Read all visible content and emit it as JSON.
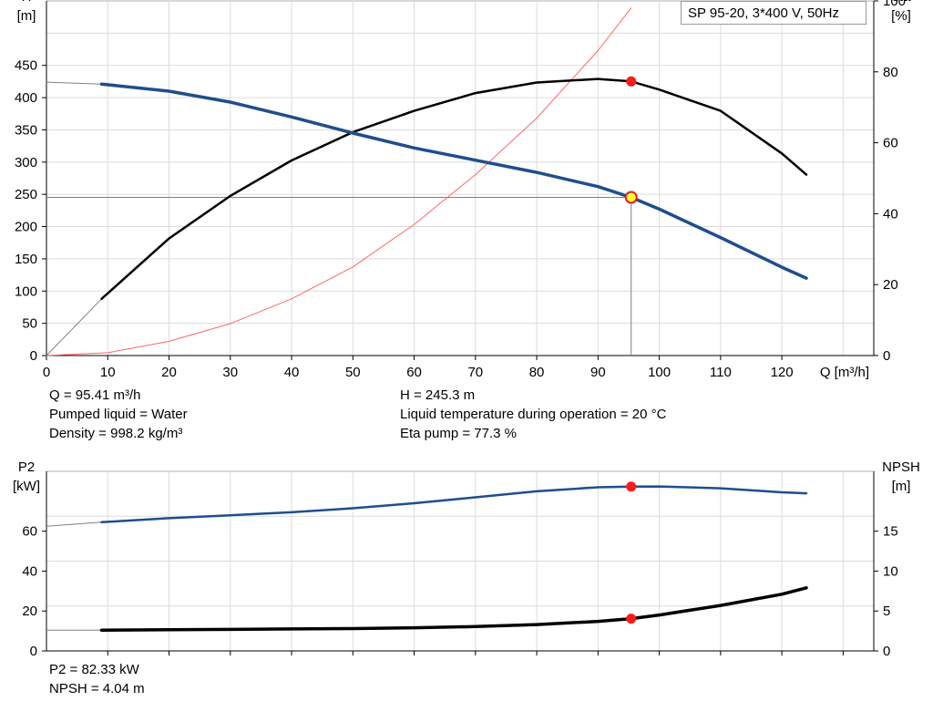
{
  "chart_data": [
    {
      "type": "line",
      "title": "SP 95-20, 3*400 V, 50Hz",
      "xlabel": "Q [m³/h]",
      "ylabel_left": [
        "H",
        "[m]"
      ],
      "ylabel_right": [
        "eta",
        "[%]"
      ],
      "xlim": [
        0,
        135
      ],
      "ylim_left": [
        0,
        550
      ],
      "ylim_right": [
        0,
        100
      ],
      "grid": true,
      "xticks": [
        "0",
        "10",
        "20",
        "30",
        "40",
        "50",
        "60",
        "70",
        "80",
        "90",
        "100",
        "110",
        "120"
      ],
      "yticks_left": [
        "0",
        "50",
        "100",
        "150",
        "200",
        "250",
        "300",
        "350",
        "400",
        "450"
      ],
      "yticks_right": [
        "0",
        "20",
        "40",
        "60",
        "80",
        "100"
      ],
      "series": [
        {
          "axis": "left",
          "color": "#1f4e8c",
          "x": [
            0,
            9,
            20,
            30,
            40,
            50,
            60,
            70,
            80,
            90,
            95.41,
            100,
            110,
            120,
            124
          ],
          "y": [
            424,
            421,
            410,
            393,
            370,
            345,
            322,
            303,
            284,
            262,
            245.3,
            227,
            183,
            137,
            120
          ]
        },
        {
          "axis": "right",
          "color": "#000000",
          "x": [
            0,
            9,
            20,
            30,
            40,
            50,
            60,
            70,
            80,
            90,
            95.41,
            100,
            110,
            120,
            124
          ],
          "y": [
            0,
            16,
            33,
            45,
            55,
            63,
            69,
            74,
            77,
            78,
            77.3,
            75,
            69,
            57,
            51
          ]
        },
        {
          "axis": "right",
          "color": "#ff6666",
          "x": [
            0,
            10,
            20,
            30,
            40,
            50,
            60,
            70,
            80,
            90,
            95.41
          ],
          "y": [
            0,
            0.8,
            4,
            9,
            16,
            25,
            37,
            51,
            67,
            86,
            98
          ]
        }
      ],
      "operating_point": {
        "Q": 95.41,
        "H": 245.3,
        "eta": 77.3
      }
    },
    {
      "type": "line",
      "xlabel": "",
      "ylabel_left": [
        "P2",
        "[kW]"
      ],
      "ylabel_right": [
        "NPSH",
        "[m]"
      ],
      "xlim": [
        0,
        135
      ],
      "ylim_left": [
        0,
        90
      ],
      "ylim_right": [
        0,
        22.5
      ],
      "grid": true,
      "yticks_left": [
        "0",
        "20",
        "40",
        "60"
      ],
      "yticks_right": [
        "0",
        "5",
        "10",
        "15"
      ],
      "series": [
        {
          "axis": "left",
          "color": "#1f4e8c",
          "x": [
            0,
            9,
            20,
            30,
            40,
            50,
            60,
            70,
            80,
            90,
            95.41,
            100,
            110,
            120,
            124
          ],
          "y": [
            62.5,
            64.5,
            66.5,
            68,
            69.5,
            71.5,
            74,
            77,
            80,
            82,
            82.33,
            82.4,
            81.5,
            79.5,
            79
          ]
        },
        {
          "axis": "right",
          "color": "#000000",
          "x": [
            0,
            9,
            20,
            30,
            40,
            50,
            60,
            70,
            80,
            90,
            95.41,
            100,
            110,
            120,
            124
          ],
          "y": [
            2.6,
            2.6,
            2.65,
            2.7,
            2.75,
            2.8,
            2.9,
            3.05,
            3.3,
            3.7,
            4.04,
            4.5,
            5.7,
            7.1,
            7.9
          ]
        }
      ],
      "operating_point": {
        "Q": 95.41,
        "P2": 82.33,
        "NPSH": 4.04
      }
    }
  ],
  "info": {
    "q": "Q = 95.41 m³/h",
    "liquid": "Pumped liquid = Water",
    "density": "Density = 998.2 kg/m³",
    "h": "H = 245.3 m",
    "temp": "Liquid temperature during operation = 20 °C",
    "eta": "Eta pump = 77.3 %",
    "p2": "P2 = 82.33 kW",
    "npsh": "NPSH = 4.04 m"
  }
}
